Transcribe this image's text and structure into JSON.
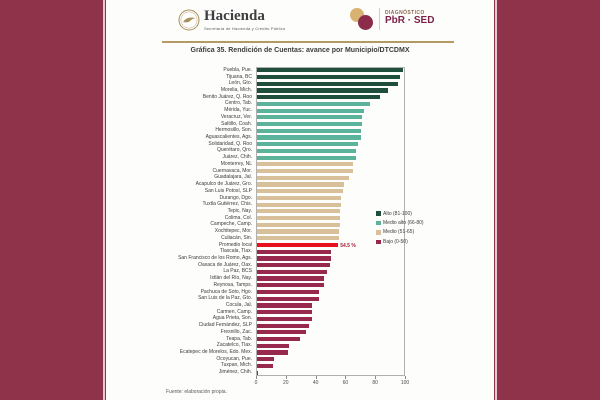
{
  "header": {
    "brand": "Hacienda",
    "brand_sub": "Secretaría de Hacienda y Crédito Público",
    "right_small": "DIAGNÓSTICO",
    "right_big": "PbR · SED"
  },
  "title": "Gráfica 35. Rendición de Cuentas: avance por Municipio/DTCDMX",
  "source": "Fuente: elaboración propia.",
  "colors": {
    "background": "#8e334a",
    "accent_line": "#e6c6cf",
    "header_rule": "#b49a62",
    "alto": "#1f4e3c",
    "medio_alto": "#5bb39b",
    "medio": "#d8c09a",
    "bajo": "#97294e",
    "promedio": "#e8101d",
    "value_label": "#a21d33"
  },
  "legend": [
    {
      "label": "Alto (81-100)",
      "color_key": "alto"
    },
    {
      "label": "Medio alto (66-80)",
      "color_key": "medio_alto"
    },
    {
      "label": "Medio (51-65)",
      "color_key": "medio"
    },
    {
      "label": "Bajo (0-50)",
      "color_key": "bajo"
    }
  ],
  "chart_data": {
    "type": "bar",
    "orientation": "horizontal",
    "title": "Gráfica 35. Rendición de Cuentas: avance por Municipio/DTCDMX",
    "xlabel": "",
    "ylabel": "",
    "xlim": [
      0,
      100
    ],
    "x_ticks": [
      0,
      20,
      40,
      60,
      80,
      100
    ],
    "grid": false,
    "legend_position": "right-middle",
    "rows": [
      {
        "label": "Puebla, Pue.",
        "value": 98,
        "band": "alto"
      },
      {
        "label": "Tijuana, BC",
        "value": 96,
        "band": "alto"
      },
      {
        "label": "León, Gto.",
        "value": 95,
        "band": "alto"
      },
      {
        "label": "Morelia, Mich.",
        "value": 88,
        "band": "alto"
      },
      {
        "label": "Benito Juárez, Q. Roo",
        "value": 83,
        "band": "alto"
      },
      {
        "label": "Centro, Tab.",
        "value": 76,
        "band": "medio_alto"
      },
      {
        "label": "Mérida, Yuc.",
        "value": 72,
        "band": "medio_alto"
      },
      {
        "label": "Veracruz, Ver.",
        "value": 71,
        "band": "medio_alto"
      },
      {
        "label": "Saltillo, Coah.",
        "value": 71,
        "band": "medio_alto"
      },
      {
        "label": "Hermosillo, Son.",
        "value": 70,
        "band": "medio_alto"
      },
      {
        "label": "Aguascalientes, Ags.",
        "value": 70,
        "band": "medio_alto"
      },
      {
        "label": "Solidaridad, Q. Roo",
        "value": 68,
        "band": "medio_alto"
      },
      {
        "label": "Querétaro, Qro.",
        "value": 67,
        "band": "medio_alto"
      },
      {
        "label": "Juárez, Chih.",
        "value": 67,
        "band": "medio_alto"
      },
      {
        "label": "Monterrey, NL",
        "value": 65,
        "band": "medio"
      },
      {
        "label": "Cuernavaca, Mor.",
        "value": 65,
        "band": "medio"
      },
      {
        "label": "Guadalajara, Jal.",
        "value": 62,
        "band": "medio"
      },
      {
        "label": "Acapulco de Juárez, Gro.",
        "value": 59,
        "band": "medio"
      },
      {
        "label": "San Luis Potosí, SLP",
        "value": 58,
        "band": "medio"
      },
      {
        "label": "Durango, Dgo.",
        "value": 57,
        "band": "medio"
      },
      {
        "label": "Tuxtla Gutiérrez, Chis.",
        "value": 57,
        "band": "medio"
      },
      {
        "label": "Tepic, Nay.",
        "value": 56,
        "band": "medio"
      },
      {
        "label": "Colima, Col.",
        "value": 56,
        "band": "medio"
      },
      {
        "label": "Campeche, Camp.",
        "value": 56,
        "band": "medio"
      },
      {
        "label": "Xochitepec, Mor.",
        "value": 55,
        "band": "medio"
      },
      {
        "label": "Culiacán, Sin.",
        "value": 55,
        "band": "medio"
      },
      {
        "label": "Promedio local",
        "value": 54.5,
        "band": "promedio",
        "value_label": "54.5 %"
      },
      {
        "label": "Tlaxcala, Tlax.",
        "value": 50,
        "band": "bajo"
      },
      {
        "label": "San Francisco de los Romo, Ags.",
        "value": 50,
        "band": "bajo"
      },
      {
        "label": "Oaxaca de Juárez, Oax.",
        "value": 49,
        "band": "bajo"
      },
      {
        "label": "La Paz, BCS",
        "value": 47,
        "band": "bajo"
      },
      {
        "label": "Ixtlán del Río, Nay.",
        "value": 45,
        "band": "bajo"
      },
      {
        "label": "Reynosa, Tamps.",
        "value": 45,
        "band": "bajo"
      },
      {
        "label": "Pachuca de Soto, Hgo.",
        "value": 42,
        "band": "bajo"
      },
      {
        "label": "San Luis de la Paz, Gto.",
        "value": 42,
        "band": "bajo"
      },
      {
        "label": "Cocula, Jal.",
        "value": 37,
        "band": "bajo"
      },
      {
        "label": "Carmen, Camp.",
        "value": 37,
        "band": "bajo"
      },
      {
        "label": "Agua Prieta, Son.",
        "value": 37,
        "band": "bajo"
      },
      {
        "label": "Ciudad Fernández, SLP",
        "value": 35,
        "band": "bajo"
      },
      {
        "label": "Fresnillo, Zac.",
        "value": 33,
        "band": "bajo"
      },
      {
        "label": "Teapa, Tab.",
        "value": 29,
        "band": "bajo"
      },
      {
        "label": "Zacatelco, Tlax.",
        "value": 22,
        "band": "bajo"
      },
      {
        "label": "Ecatepec de Morelos, Edo. Mex.",
        "value": 21,
        "band": "bajo"
      },
      {
        "label": "Ocoyucan, Pue.",
        "value": 12,
        "band": "bajo"
      },
      {
        "label": "Tuxpan, Mich.",
        "value": 11,
        "band": "bajo"
      },
      {
        "label": "Jiménez, Chih.",
        "value": 1,
        "band": "bajo"
      }
    ]
  }
}
